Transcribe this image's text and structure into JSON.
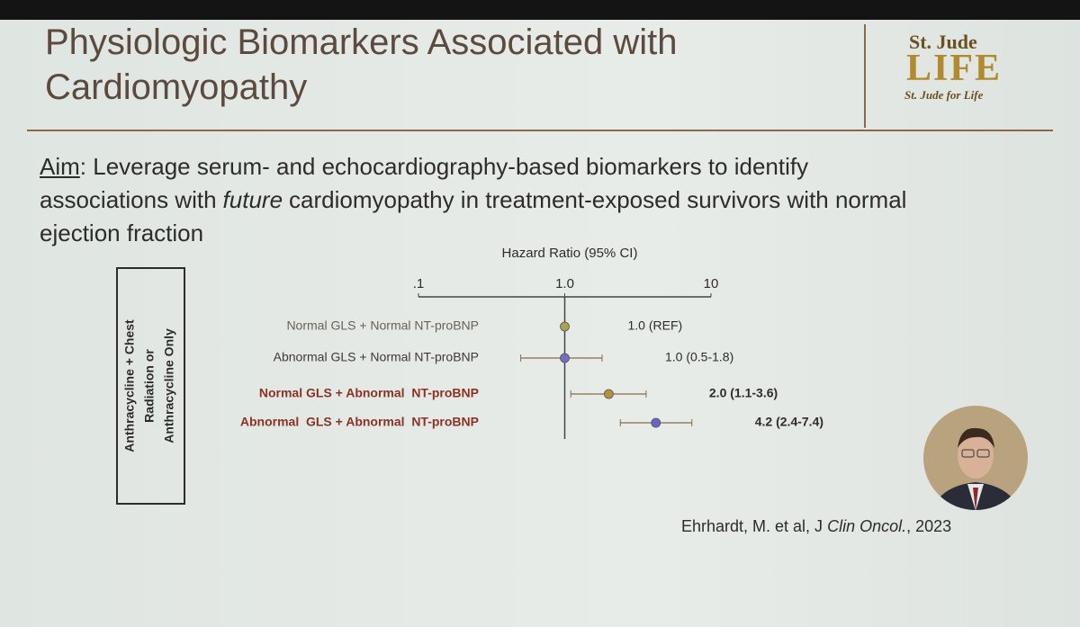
{
  "slide": {
    "title_lines": [
      "Physiologic Biomarkers Associated with",
      "Cardiomyopathy"
    ],
    "logo": {
      "top": "St. Jude",
      "main": "LIFE",
      "bottom": "St. Jude for Life"
    },
    "aim": {
      "label": "Aim",
      "line_1": ": Leverage serum- and echocardiography-based biomarkers to identify",
      "line_2_start": "associations with",
      "line_2_emphasis": "future",
      "line_2_end": "cardiomyopathy in treatment-exposed survivors with normal",
      "line_3": "ejection fraction"
    },
    "group_label_lines": [
      "Anthracycline + Chest",
      "Radiation or",
      "Anthracycline Only"
    ],
    "citation": {
      "start": "Ehrhardt, M. et al, J",
      "journal": "Clin Oncol.",
      "end": ", 2023"
    }
  },
  "chart_data": {
    "type": "forest",
    "title": "Hazard Ratio (95% CI)",
    "log_x": true,
    "xlim": [
      0.1,
      10
    ],
    "xticks": [
      {
        "value": 0.1,
        "label": ".1"
      },
      {
        "value": 1,
        "label": "1.0"
      },
      10
    ],
    "reference": 1,
    "categories": [
      "Normal GLS + Normal NT-proBNP",
      "Abnormal GLS + Normal NT-proBNP",
      "Normal GLS + Abnormal  NT-proBNP",
      "Abnormal  GLS + Abnormal  NT-proBNP"
    ],
    "values": [
      1.0,
      1.0,
      2.0,
      4.2
    ],
    "lower": [
      null,
      0.5,
      1.1,
      2.4
    ],
    "upper": [
      null,
      1.8,
      3.6,
      7.4
    ],
    "value_labels": [
      "1.0 (REF)",
      "1.0 (0.5-1.8)",
      "2.0 (1.1-3.6)",
      "4.2 (2.4-7.4)"
    ],
    "colors": [
      "#a8a24a",
      "#756cc6",
      "#b8903c",
      "#6a63c8"
    ],
    "label_colors": [
      "#6a6256",
      "#3e3a36",
      "#8a3324",
      "#8a3324"
    ]
  }
}
